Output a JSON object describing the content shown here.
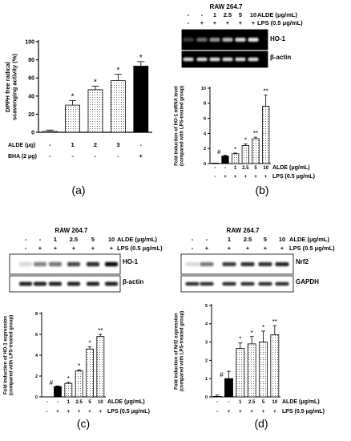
{
  "panels": {
    "a": {
      "label": "(a)"
    },
    "b": {
      "label": "(b)",
      "cell_line": "RAW 264.7",
      "blots": [
        "HO-1",
        "β-actin"
      ]
    },
    "c": {
      "label": "(c)",
      "cell_line": "RAW 264.7",
      "blots": [
        "HO-1",
        "β-actin"
      ]
    },
    "d": {
      "label": "(d)",
      "cell_line": "RAW 264.7",
      "blots": [
        "Nrf2",
        "GAPDH"
      ]
    }
  },
  "chart_data": [
    {
      "panel": "a",
      "type": "bar",
      "ylabel": "DPPH free radical scavenging activity (%)",
      "ylim": [
        0,
        100
      ],
      "yticks": [
        0,
        20,
        40,
        60,
        80,
        100
      ],
      "row_labels": [
        "ALDE (μg)",
        "BHA (2 μg)"
      ],
      "columns": [
        {
          "ALDE (μg)": "-",
          "BHA (2 μg)": "-"
        },
        {
          "ALDE (μg)": "1",
          "BHA (2 μg)": "-"
        },
        {
          "ALDE (μg)": "2",
          "BHA (2 μg)": "-"
        },
        {
          "ALDE (μg)": "3",
          "BHA (2 μg)": "-"
        },
        {
          "ALDE (μg)": "-",
          "BHA (2 μg)": "+"
        }
      ],
      "values": [
        1,
        30,
        47,
        57,
        73
      ],
      "errors": [
        1.5,
        5,
        4,
        7,
        5
      ],
      "annotations": [
        "",
        "*",
        "*",
        "*",
        "*"
      ],
      "fills": [
        "white",
        "dotted",
        "dotted",
        "dotted",
        "black"
      ]
    },
    {
      "panel": "b",
      "type": "bar",
      "ylabel": "Fold induction of HO-1 mRNA level (compared with LPS-treated group)",
      "ylim": [
        0,
        10
      ],
      "yticks": [
        0,
        2,
        4,
        6,
        8,
        10
      ],
      "row_labels": [
        "ALDE (μg/mL)",
        "LPS (0.5 μg/mL)"
      ],
      "columns": [
        {
          "ALDE (μg/mL)": "-",
          "LPS (0.5 μg/mL)": "-"
        },
        {
          "ALDE (μg/mL)": "-",
          "LPS (0.5 μg/mL)": "+"
        },
        {
          "ALDE (μg/mL)": "1",
          "LPS (0.5 μg/mL)": "+"
        },
        {
          "ALDE (μg/mL)": "2.5",
          "LPS (0.5 μg/mL)": "+"
        },
        {
          "ALDE (μg/mL)": "5",
          "LPS (0.5 μg/mL)": "+"
        },
        {
          "ALDE (μg/mL)": "10",
          "LPS (0.5 μg/mL)": "+"
        }
      ],
      "values": [
        0,
        1,
        1.3,
        2.4,
        3.3,
        7.6
      ],
      "errors": [
        0,
        0.1,
        0.1,
        0.2,
        0.2,
        1.5
      ],
      "annotations": [
        "",
        "#",
        "*",
        "*",
        "**",
        "**"
      ],
      "fills": [
        "white",
        "black",
        "dotted",
        "dotted",
        "dotted",
        "dotted"
      ]
    },
    {
      "panel": "c",
      "type": "bar",
      "ylabel": "Fold induction of HO-1 expression (compared with LPS-treated group)",
      "ylim": [
        0,
        8
      ],
      "yticks": [
        0,
        2,
        4,
        6,
        8
      ],
      "row_labels": [
        "ALDE (μg/mL)",
        "LPS (0.5 μg/mL)"
      ],
      "columns": [
        {
          "ALDE (μg/mL)": "-",
          "LPS (0.5 μg/mL)": "-"
        },
        {
          "ALDE (μg/mL)": "-",
          "LPS (0.5 μg/mL)": "+"
        },
        {
          "ALDE (μg/mL)": "1",
          "LPS (0.5 μg/mL)": "+"
        },
        {
          "ALDE (μg/mL)": "2.5",
          "LPS (0.5 μg/mL)": "+"
        },
        {
          "ALDE (μg/mL)": "5",
          "LPS (0.5 μg/mL)": "+"
        },
        {
          "ALDE (μg/mL)": "10",
          "LPS (0.5 μg/mL)": "+"
        }
      ],
      "values": [
        null,
        1,
        1.3,
        2.5,
        4.6,
        5.8
      ],
      "errors": [
        0,
        0.05,
        0.1,
        0.1,
        0.2,
        0.2
      ],
      "annotations": [
        "",
        "#",
        "*",
        "*",
        "*",
        "**"
      ],
      "fills": [
        "white",
        "black",
        "dotted",
        "dotted",
        "dotted",
        "dotted"
      ]
    },
    {
      "panel": "d",
      "type": "bar",
      "ylabel": "Fold induction of Nrf2 expression (compared with LPS-treated group)",
      "ylim": [
        0,
        5
      ],
      "yticks": [
        0,
        1,
        2,
        3,
        4,
        5
      ],
      "row_labels": [
        "ALDE (μg/mL)",
        "LPS (0.5 μg/mL)"
      ],
      "columns": [
        {
          "ALDE (μg/mL)": "-",
          "LPS (0.5 μg/mL)": "-"
        },
        {
          "ALDE (μg/mL)": "-",
          "LPS (0.5 μg/mL)": "+"
        },
        {
          "ALDE (μg/mL)": "1",
          "LPS (0.5 μg/mL)": "+"
        },
        {
          "ALDE (μg/mL)": "2.5",
          "LPS (0.5 μg/mL)": "+"
        },
        {
          "ALDE (μg/mL)": "5",
          "LPS (0.5 μg/mL)": "+"
        },
        {
          "ALDE (μg/mL)": "10",
          "LPS (0.5 μg/mL)": "+"
        }
      ],
      "values": [
        0,
        1,
        2.65,
        2.9,
        3.0,
        3.4
      ],
      "errors": [
        0.1,
        0.4,
        0.3,
        0.4,
        0.6,
        0.5
      ],
      "annotations": [
        "",
        "#",
        "*",
        "*",
        "*",
        "**"
      ],
      "fills": [
        "white",
        "black",
        "dotted",
        "dotted",
        "dotted",
        "dotted"
      ]
    }
  ]
}
